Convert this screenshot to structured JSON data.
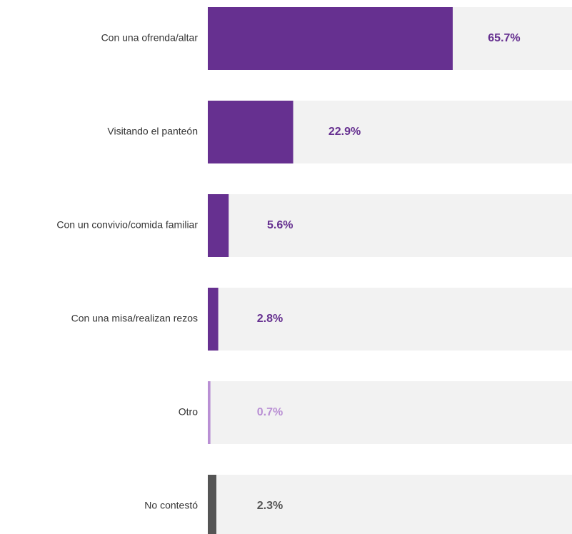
{
  "chart_data": {
    "type": "hbar",
    "categories": [
      "Con una ofrenda/altar",
      "Visitando el panteón",
      "Con un convivio/comida familiar",
      "Con una misa/realizan rezos",
      "Otro",
      "No contestó"
    ],
    "values": [
      65.7,
      22.9,
      5.6,
      2.8,
      0.7,
      2.3
    ],
    "value_labels": [
      "65.7%",
      "22.9%",
      "5.6%",
      "2.8%",
      "0.7%",
      "2.3%"
    ],
    "colors": [
      "#663090",
      "#663090",
      "#663090",
      "#663090",
      "#b98fd4",
      "#555555"
    ],
    "track_color": "#f2f2f2"
  }
}
